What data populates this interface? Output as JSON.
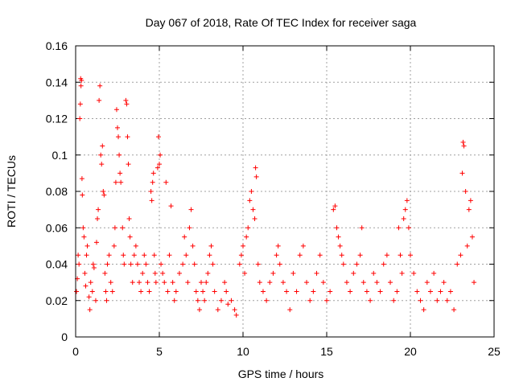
{
  "chart_data": {
    "type": "scatter",
    "title": "Day 067 of 2018, Rate Of TEC Index for receiver saga",
    "xlabel": "GPS time / hours",
    "ylabel": "ROTI / TECUs",
    "xlim": [
      0,
      25
    ],
    "ylim": [
      0,
      0.16
    ],
    "xticks": [
      0,
      5,
      10,
      15,
      20,
      25
    ],
    "xtick_labels": [
      "0",
      "5",
      "10",
      "15",
      "20",
      "25"
    ],
    "yticks": [
      0,
      0.02,
      0.04,
      0.06,
      0.08,
      0.1,
      0.12,
      0.14,
      0.16
    ],
    "ytick_labels": [
      "0",
      "0.02",
      "0.04",
      "0.06",
      "0.08",
      "0.1",
      "0.12",
      "0.14",
      "0.16"
    ],
    "grid": true,
    "marker": "plus",
    "color": "#ff0000",
    "series": [
      {
        "name": "ROTI",
        "points": [
          [
            0.05,
            0.025
          ],
          [
            0.1,
            0.032
          ],
          [
            0.15,
            0.045
          ],
          [
            0.2,
            0.04
          ],
          [
            0.25,
            0.12
          ],
          [
            0.28,
            0.128
          ],
          [
            0.3,
            0.142
          ],
          [
            0.32,
            0.138
          ],
          [
            0.35,
            0.141
          ],
          [
            0.38,
            0.087
          ],
          [
            0.4,
            0.078
          ],
          [
            0.45,
            0.06
          ],
          [
            0.5,
            0.055
          ],
          [
            0.55,
            0.035
          ],
          [
            0.6,
            0.028
          ],
          [
            0.65,
            0.045
          ],
          [
            0.7,
            0.05
          ],
          [
            0.8,
            0.022
          ],
          [
            0.85,
            0.015
          ],
          [
            0.9,
            0.03
          ],
          [
            1.0,
            0.025
          ],
          [
            1.05,
            0.04
          ],
          [
            1.1,
            0.038
          ],
          [
            1.2,
            0.02
          ],
          [
            1.25,
            0.052
          ],
          [
            1.3,
            0.065
          ],
          [
            1.35,
            0.07
          ],
          [
            1.4,
            0.13
          ],
          [
            1.45,
            0.138
          ],
          [
            1.5,
            0.1
          ],
          [
            1.55,
            0.095
          ],
          [
            1.6,
            0.105
          ],
          [
            1.65,
            0.08
          ],
          [
            1.7,
            0.078
          ],
          [
            1.75,
            0.035
          ],
          [
            1.8,
            0.025
          ],
          [
            1.85,
            0.02
          ],
          [
            1.9,
            0.04
          ],
          [
            2.0,
            0.045
          ],
          [
            2.1,
            0.03
          ],
          [
            2.2,
            0.025
          ],
          [
            2.3,
            0.05
          ],
          [
            2.35,
            0.06
          ],
          [
            2.4,
            0.085
          ],
          [
            2.45,
            0.125
          ],
          [
            2.5,
            0.115
          ],
          [
            2.55,
            0.11
          ],
          [
            2.6,
            0.1
          ],
          [
            2.65,
            0.09
          ],
          [
            2.7,
            0.085
          ],
          [
            2.8,
            0.06
          ],
          [
            2.85,
            0.045
          ],
          [
            2.9,
            0.04
          ],
          [
            3.0,
            0.13
          ],
          [
            3.05,
            0.128
          ],
          [
            3.1,
            0.11
          ],
          [
            3.15,
            0.095
          ],
          [
            3.2,
            0.065
          ],
          [
            3.25,
            0.055
          ],
          [
            3.3,
            0.04
          ],
          [
            3.4,
            0.03
          ],
          [
            3.5,
            0.045
          ],
          [
            3.6,
            0.05
          ],
          [
            3.7,
            0.04
          ],
          [
            3.8,
            0.03
          ],
          [
            3.9,
            0.025
          ],
          [
            4.0,
            0.035
          ],
          [
            4.1,
            0.045
          ],
          [
            4.2,
            0.04
          ],
          [
            4.3,
            0.03
          ],
          [
            4.4,
            0.025
          ],
          [
            4.5,
            0.08
          ],
          [
            4.55,
            0.075
          ],
          [
            4.6,
            0.085
          ],
          [
            4.65,
            0.09
          ],
          [
            4.7,
            0.045
          ],
          [
            4.75,
            0.035
          ],
          [
            4.8,
            0.03
          ],
          [
            4.9,
            0.093
          ],
          [
            4.95,
            0.11
          ],
          [
            5.0,
            0.095
          ],
          [
            5.05,
            0.1
          ],
          [
            5.1,
            0.04
          ],
          [
            5.2,
            0.035
          ],
          [
            5.3,
            0.03
          ],
          [
            5.4,
            0.085
          ],
          [
            5.5,
            0.025
          ],
          [
            5.6,
            0.045
          ],
          [
            5.7,
            0.072
          ],
          [
            5.8,
            0.03
          ],
          [
            5.9,
            0.02
          ],
          [
            6.0,
            0.025
          ],
          [
            6.2,
            0.035
          ],
          [
            6.4,
            0.04
          ],
          [
            6.5,
            0.055
          ],
          [
            6.6,
            0.045
          ],
          [
            6.7,
            0.03
          ],
          [
            6.8,
            0.06
          ],
          [
            6.9,
            0.07
          ],
          [
            7.0,
            0.05
          ],
          [
            7.1,
            0.04
          ],
          [
            7.2,
            0.025
          ],
          [
            7.3,
            0.02
          ],
          [
            7.4,
            0.015
          ],
          [
            7.5,
            0.03
          ],
          [
            7.6,
            0.025
          ],
          [
            7.7,
            0.02
          ],
          [
            7.8,
            0.03
          ],
          [
            7.9,
            0.035
          ],
          [
            8.0,
            0.045
          ],
          [
            8.1,
            0.05
          ],
          [
            8.2,
            0.04
          ],
          [
            8.3,
            0.025
          ],
          [
            8.5,
            0.015
          ],
          [
            8.7,
            0.02
          ],
          [
            8.9,
            0.03
          ],
          [
            9.0,
            0.025
          ],
          [
            9.1,
            0.018
          ],
          [
            9.3,
            0.02
          ],
          [
            9.5,
            0.015
          ],
          [
            9.6,
            0.012
          ],
          [
            9.8,
            0.04
          ],
          [
            9.9,
            0.045
          ],
          [
            10.0,
            0.05
          ],
          [
            10.1,
            0.035
          ],
          [
            10.2,
            0.055
          ],
          [
            10.3,
            0.06
          ],
          [
            10.4,
            0.075
          ],
          [
            10.5,
            0.08
          ],
          [
            10.6,
            0.07
          ],
          [
            10.7,
            0.065
          ],
          [
            10.75,
            0.093
          ],
          [
            10.8,
            0.088
          ],
          [
            10.9,
            0.04
          ],
          [
            11.0,
            0.03
          ],
          [
            11.2,
            0.025
          ],
          [
            11.4,
            0.02
          ],
          [
            11.6,
            0.03
          ],
          [
            11.8,
            0.035
          ],
          [
            12.0,
            0.045
          ],
          [
            12.1,
            0.05
          ],
          [
            12.2,
            0.04
          ],
          [
            12.4,
            0.03
          ],
          [
            12.6,
            0.025
          ],
          [
            12.8,
            0.015
          ],
          [
            13.0,
            0.035
          ],
          [
            13.2,
            0.025
          ],
          [
            13.4,
            0.045
          ],
          [
            13.6,
            0.05
          ],
          [
            13.8,
            0.03
          ],
          [
            14.0,
            0.02
          ],
          [
            14.2,
            0.025
          ],
          [
            14.4,
            0.035
          ],
          [
            14.6,
            0.045
          ],
          [
            14.8,
            0.03
          ],
          [
            15.0,
            0.02
          ],
          [
            15.2,
            0.025
          ],
          [
            15.4,
            0.07
          ],
          [
            15.5,
            0.072
          ],
          [
            15.6,
            0.06
          ],
          [
            15.7,
            0.055
          ],
          [
            15.8,
            0.05
          ],
          [
            15.9,
            0.045
          ],
          [
            16.0,
            0.04
          ],
          [
            16.2,
            0.03
          ],
          [
            16.4,
            0.025
          ],
          [
            16.6,
            0.035
          ],
          [
            16.8,
            0.04
          ],
          [
            17.0,
            0.045
          ],
          [
            17.1,
            0.06
          ],
          [
            17.2,
            0.03
          ],
          [
            17.4,
            0.025
          ],
          [
            17.6,
            0.02
          ],
          [
            17.8,
            0.035
          ],
          [
            18.0,
            0.03
          ],
          [
            18.2,
            0.025
          ],
          [
            18.4,
            0.04
          ],
          [
            18.6,
            0.045
          ],
          [
            18.8,
            0.03
          ],
          [
            19.0,
            0.02
          ],
          [
            19.2,
            0.025
          ],
          [
            19.3,
            0.06
          ],
          [
            19.4,
            0.045
          ],
          [
            19.5,
            0.035
          ],
          [
            19.6,
            0.065
          ],
          [
            19.7,
            0.07
          ],
          [
            19.8,
            0.075
          ],
          [
            19.9,
            0.06
          ],
          [
            20.0,
            0.045
          ],
          [
            20.2,
            0.035
          ],
          [
            20.4,
            0.025
          ],
          [
            20.6,
            0.02
          ],
          [
            20.8,
            0.015
          ],
          [
            21.0,
            0.03
          ],
          [
            21.2,
            0.025
          ],
          [
            21.4,
            0.035
          ],
          [
            21.6,
            0.02
          ],
          [
            21.8,
            0.025
          ],
          [
            22.0,
            0.03
          ],
          [
            22.2,
            0.02
          ],
          [
            22.4,
            0.025
          ],
          [
            22.6,
            0.015
          ],
          [
            22.8,
            0.04
          ],
          [
            23.0,
            0.045
          ],
          [
            23.1,
            0.09
          ],
          [
            23.15,
            0.107
          ],
          [
            23.2,
            0.105
          ],
          [
            23.3,
            0.08
          ],
          [
            23.4,
            0.05
          ],
          [
            23.5,
            0.07
          ],
          [
            23.6,
            0.075
          ],
          [
            23.7,
            0.055
          ],
          [
            23.8,
            0.03
          ]
        ]
      }
    ]
  }
}
